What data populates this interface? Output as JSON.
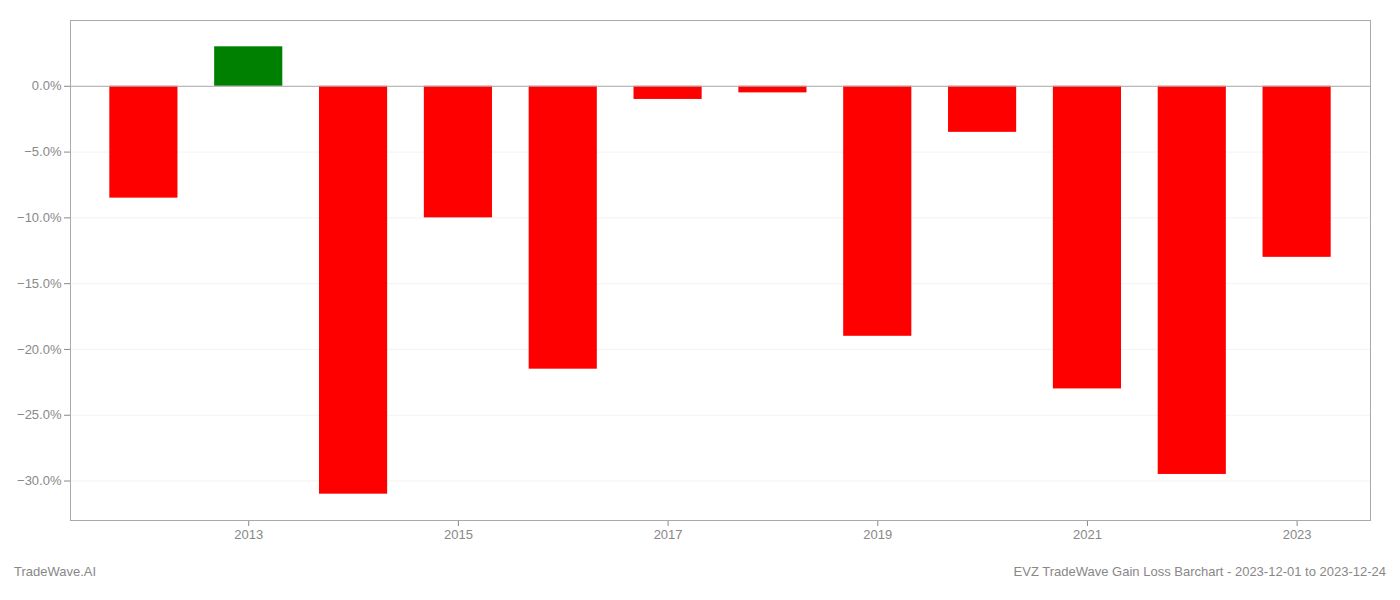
{
  "chart_data": {
    "type": "bar",
    "x": [
      2012,
      2013,
      2014,
      2015,
      2016,
      2017,
      2018,
      2019,
      2020,
      2021,
      2022,
      2023
    ],
    "values": [
      -8.5,
      3.0,
      -31.0,
      -10.0,
      -21.5,
      -1.0,
      -0.5,
      -19.0,
      -3.5,
      -23.0,
      -29.5,
      -13.0
    ],
    "colors": [
      "#ff0000",
      "#008000",
      "#ff0000",
      "#ff0000",
      "#ff0000",
      "#ff0000",
      "#ff0000",
      "#ff0000",
      "#ff0000",
      "#ff0000",
      "#ff0000",
      "#ff0000"
    ],
    "xlim": [
      2011.3,
      2023.7
    ],
    "xticks": [
      2013,
      2015,
      2017,
      2019,
      2021,
      2023
    ],
    "ylim": [
      -33,
      5
    ],
    "yticks": [
      {
        "value": 0,
        "label": "0.0%"
      },
      {
        "value": -5,
        "label": "−5.0%"
      },
      {
        "value": -10,
        "label": "−10.0%"
      },
      {
        "value": -15,
        "label": "−15.0%"
      },
      {
        "value": -20,
        "label": "−20.0%"
      },
      {
        "value": -25,
        "label": "−25.0%"
      },
      {
        "value": -30,
        "label": "−30.0%"
      }
    ],
    "grid": true,
    "annotations": [
      "TradeWave.AI",
      "EVZ TradeWave Gain Loss Barchart - 2023-12-01 to 2023-12-24"
    ]
  }
}
